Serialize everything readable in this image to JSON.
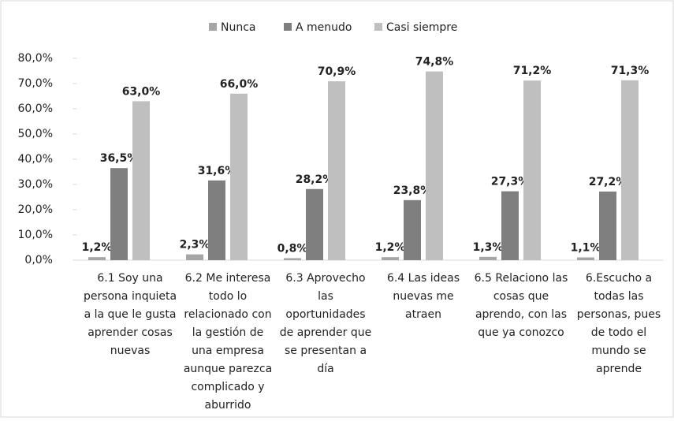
{
  "chart_data": {
    "type": "bar",
    "categories": [
      [
        "6.1 Soy una",
        "persona inquieta",
        "a la que le gusta",
        "aprender cosas",
        "nuevas"
      ],
      [
        "6.2 Me interesa",
        "todo lo",
        "relacionado con",
        "la gestión de",
        "una empresa",
        "aunque parezca",
        "complicado y",
        "aburrido"
      ],
      [
        "6.3 Aprovecho",
        "las",
        "oportunidades",
        "de aprender que",
        "se presentan a",
        "día"
      ],
      [
        "6.4 Las ideas",
        "nuevas me",
        "atraen"
      ],
      [
        "6.5 Relaciono las",
        "cosas que",
        "aprendo, con las",
        "que ya conozco"
      ],
      [
        "6.Escucho a",
        "todas las",
        "personas, pues",
        "de todo el",
        "mundo se",
        "aprende"
      ]
    ],
    "series": [
      {
        "name": "Nunca",
        "color": "#a6a6a6",
        "values": [
          1.2,
          2.3,
          0.8,
          1.2,
          1.3,
          1.1
        ],
        "value_labels": [
          "1,2%",
          "2,3%",
          "0,8%",
          "1,2%",
          "1,3%",
          "1,1%"
        ]
      },
      {
        "name": "A menudo",
        "color": "#7f7f7f",
        "values": [
          36.5,
          31.6,
          28.2,
          23.8,
          27.3,
          27.2
        ],
        "value_labels": [
          "36,5%",
          "31,6%",
          "28,2%",
          "23,8%",
          "27,3%",
          "27,2%"
        ]
      },
      {
        "name": "Casi siempre",
        "color": "#bfbfbf",
        "values": [
          63.0,
          66.0,
          70.9,
          74.8,
          71.2,
          71.3
        ],
        "value_labels": [
          "63,0%",
          "66,0%",
          "70,9%",
          "74,8%",
          "71,2%",
          "71,3%"
        ]
      }
    ],
    "ylim": [
      0,
      80
    ],
    "yticks": [
      {
        "value": 0,
        "label": "0,0%"
      },
      {
        "value": 10,
        "label": "10,0%"
      },
      {
        "value": 20,
        "label": "20,0%"
      },
      {
        "value": 30,
        "label": "30,0%"
      },
      {
        "value": 40,
        "label": "40,0%"
      },
      {
        "value": 50,
        "label": "50,0%"
      },
      {
        "value": 60,
        "label": "60,0%"
      },
      {
        "value": 70,
        "label": "70,0%"
      },
      {
        "value": 80,
        "label": "80,0%"
      }
    ],
    "legend": "top"
  }
}
